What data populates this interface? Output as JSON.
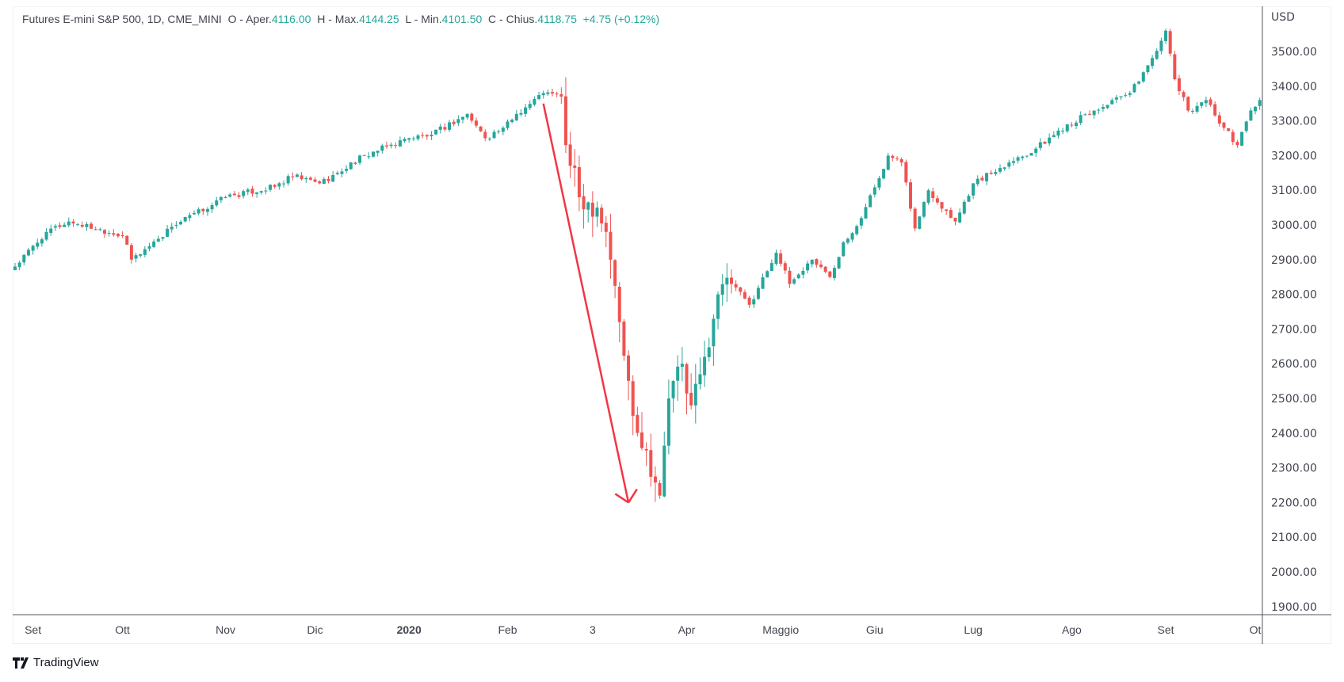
{
  "header": {
    "symbol": "Futures E-mini S&P 500, 1D, CME_MINI",
    "open_label": "O - Aper.",
    "open": "4116.00",
    "high_label": "H - Max.",
    "high": "4144.25",
    "low_label": "L - Min.",
    "low": "4101.50",
    "close_label": "C - Chius.",
    "close": "4118.75",
    "change": "+4.75 (+0.12%)"
  },
  "branding": {
    "logo_text": "TradingView"
  },
  "colors": {
    "up": "#26a69a",
    "down": "#ef5350",
    "arrow": "#f23645",
    "axis": "#50535e"
  },
  "chart_data": {
    "type": "candlestick",
    "title": "Futures E-mini S&P 500, 1D, CME_MINI",
    "currency": "USD",
    "ylim": [
      1880,
      3610
    ],
    "yticks": [
      "3500.00",
      "3400.00",
      "3300.00",
      "3200.00",
      "3100.00",
      "3000.00",
      "2900.00",
      "2800.00",
      "2700.00",
      "2600.00",
      "2500.00",
      "2400.00",
      "2300.00",
      "2200.00",
      "2100.00",
      "2000.00",
      "1900.00"
    ],
    "xticks": [
      {
        "label": "Set",
        "day": 4,
        "bold": false
      },
      {
        "label": "Ott",
        "day": 24,
        "bold": false
      },
      {
        "label": "Nov",
        "day": 47,
        "bold": false
      },
      {
        "label": "Dic",
        "day": 67,
        "bold": false
      },
      {
        "label": "2020",
        "day": 88,
        "bold": true
      },
      {
        "label": "Feb",
        "day": 110,
        "bold": false
      },
      {
        "label": "3",
        "day": 129,
        "bold": false
      },
      {
        "label": "Apr",
        "day": 150,
        "bold": false
      },
      {
        "label": "Maggio",
        "day": 171,
        "bold": false
      },
      {
        "label": "Giu",
        "day": 192,
        "bold": false
      },
      {
        "label": "Lug",
        "day": 214,
        "bold": false
      },
      {
        "label": "Ago",
        "day": 236,
        "bold": false
      },
      {
        "label": "Set",
        "day": 257,
        "bold": false
      },
      {
        "label": "Ot",
        "day": 277,
        "bold": false
      }
    ],
    "close_anchors": [
      [
        0,
        2880
      ],
      [
        7,
        2980
      ],
      [
        12,
        3010
      ],
      [
        24,
        2970
      ],
      [
        26,
        2900
      ],
      [
        32,
        2960
      ],
      [
        35,
        2995
      ],
      [
        47,
        3080
      ],
      [
        58,
        3110
      ],
      [
        62,
        3140
      ],
      [
        68,
        3120
      ],
      [
        72,
        3150
      ],
      [
        78,
        3200
      ],
      [
        88,
        3250
      ],
      [
        93,
        3260
      ],
      [
        101,
        3320
      ],
      [
        105,
        3250
      ],
      [
        109,
        3280
      ],
      [
        112,
        3320
      ],
      [
        118,
        3380
      ],
      [
        122,
        3370
      ],
      [
        123,
        3230
      ],
      [
        126,
        3080
      ],
      [
        130,
        3050
      ],
      [
        132,
        2980
      ],
      [
        133,
        2900
      ],
      [
        135,
        2720
      ],
      [
        138,
        2450
      ],
      [
        141,
        2350
      ],
      [
        144,
        2220
      ],
      [
        146,
        2500
      ],
      [
        149,
        2600
      ],
      [
        151,
        2480
      ],
      [
        154,
        2620
      ],
      [
        157,
        2800
      ],
      [
        160,
        2830
      ],
      [
        164,
        2770
      ],
      [
        170,
        2920
      ],
      [
        173,
        2830
      ],
      [
        178,
        2900
      ],
      [
        182,
        2850
      ],
      [
        185,
        2950
      ],
      [
        189,
        3020
      ],
      [
        195,
        3200
      ],
      [
        198,
        3180
      ],
      [
        201,
        2990
      ],
      [
        204,
        3100
      ],
      [
        210,
        3010
      ],
      [
        214,
        3120
      ],
      [
        222,
        3180
      ],
      [
        228,
        3220
      ],
      [
        235,
        3290
      ],
      [
        243,
        3340
      ],
      [
        249,
        3380
      ],
      [
        253,
        3460
      ],
      [
        257,
        3560
      ],
      [
        259,
        3420
      ],
      [
        262,
        3330
      ],
      [
        266,
        3360
      ],
      [
        270,
        3280
      ],
      [
        273,
        3230
      ],
      [
        276,
        3330
      ],
      [
        278,
        3360
      ]
    ],
    "annotation": {
      "type": "arrow",
      "from": {
        "day": 118,
        "price": 3350
      },
      "to": {
        "day": 137,
        "price": 2200
      }
    }
  }
}
